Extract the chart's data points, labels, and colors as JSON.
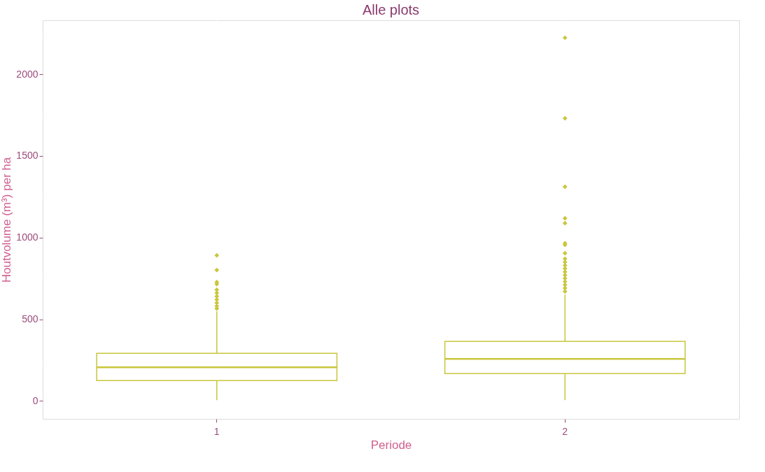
{
  "chart_data": {
    "type": "box",
    "title": "Alle plots",
    "xlabel": "Periode",
    "ylabel": "Houtvolume (m³) per ha",
    "categories": [
      "1",
      "2"
    ],
    "boxes": [
      {
        "low": 4,
        "q1": 124,
        "median": 206,
        "q3": 291,
        "high": 548,
        "outliers": [
          891,
          801,
          727,
          715,
          680,
          660,
          640,
          620,
          600,
          580,
          565
        ]
      },
      {
        "low": 4,
        "q1": 167,
        "median": 257,
        "q3": 364,
        "high": 651,
        "outliers": [
          2223,
          1730,
          1311,
          1118,
          1088,
          965,
          955,
          904,
          870,
          850,
          830,
          810,
          790,
          770,
          750,
          730,
          710,
          690,
          670
        ]
      }
    ],
    "color": "#c9c63d",
    "marker": "diamond",
    "ylim": [
      -110,
      2330
    ],
    "yticks": [
      0,
      {
        "value": 250,
        "label": null
      },
      500,
      {
        "value": 750,
        "label": null
      },
      1000,
      {
        "value": 1250,
        "label": null
      },
      1500,
      {
        "value": 1750,
        "label": null
      },
      2000,
      {
        "value": 2250,
        "label": null
      }
    ],
    "grid": true
  }
}
